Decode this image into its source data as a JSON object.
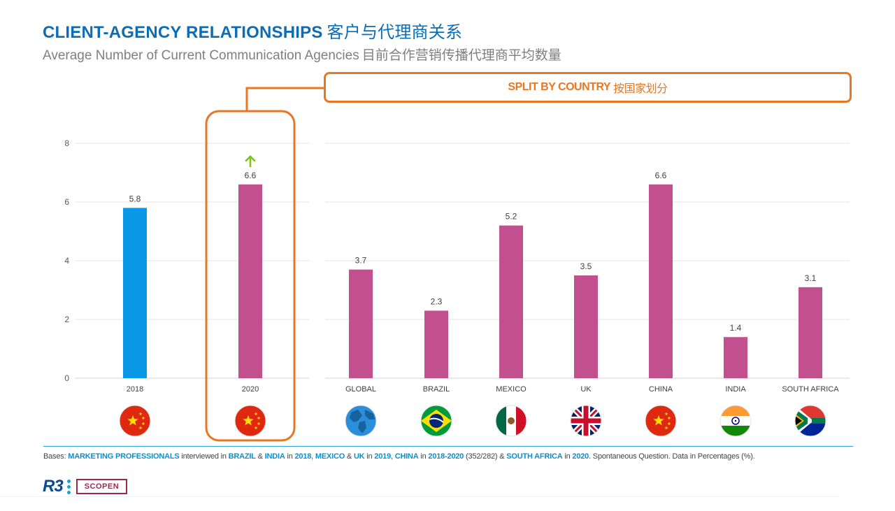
{
  "header": {
    "title": "CLIENT-AGENCY  RELATIONSHIPS",
    "title_cn": "客户与代理商关系",
    "subtitle": "Average Number of Current Communication Agencies",
    "subtitle_cn": "目前合作营销传播代理商平均数量"
  },
  "callout": {
    "label": "SPLIT BY COUNTRY",
    "label_cn": "按国家划分"
  },
  "chart_data": {
    "type": "bar",
    "ylim": [
      0,
      8
    ],
    "yticks": [
      0,
      2,
      4,
      6,
      8
    ],
    "grid": true,
    "panels": [
      {
        "name": "",
        "categories": [
          "2018",
          "2020"
        ],
        "values": [
          5.8,
          6.6
        ],
        "value_labels": [
          "5.8",
          "6.6"
        ],
        "colors": [
          "#0a98e6",
          "#c2508e"
        ],
        "flags": [
          "china",
          "china"
        ],
        "highlight_index": 1,
        "increase_arrow_index": 1
      },
      {
        "name": "",
        "categories": [
          "GLOBAL",
          "BRAZIL",
          "MEXICO",
          "UK",
          "CHINA",
          "INDIA",
          "SOUTH AFRICA"
        ],
        "values": [
          3.7,
          2.3,
          5.2,
          3.5,
          6.6,
          1.4,
          3.1
        ],
        "value_labels": [
          "3.7",
          "2.3",
          "5.2",
          "3.5",
          "6.6",
          "1.4",
          "3.1"
        ],
        "colors": [
          "#c2508e",
          "#c2508e",
          "#c2508e",
          "#c2508e",
          "#c2508e",
          "#c2508e",
          "#c2508e"
        ],
        "flags": [
          "globe",
          "brazil",
          "mexico",
          "uk",
          "china",
          "india",
          "south-africa"
        ]
      }
    ]
  },
  "footer": {
    "bases_prefix": "Bases: ",
    "p1": "MARKETING PROFESSIONALS",
    "t1": " interviewed in ",
    "p2": "BRAZIL",
    "t2": " & ",
    "p3": "INDIA",
    "t3": " in ",
    "p4": "2018",
    "t4": ", ",
    "p5": "MEXICO",
    "t5": " & ",
    "p6": "UK",
    "t6": " in ",
    "p7": "2019",
    "t7": ", ",
    "p8": "CHINA",
    "t8": " in ",
    "p9": "2018-2020",
    "t9": " (352/282) & ",
    "p10": "SOUTH AFRICA",
    "t10": " in ",
    "p11": "2020",
    "t11": ". Spontaneous Question. Data in Percentages (%).",
    "logo_r3": "R3",
    "logo_scopen": "SCOPEN"
  },
  "colors": {
    "accent_blue": "#0b6db7",
    "callout_orange": "#e87722",
    "bar_blue": "#0a98e6",
    "bar_magenta": "#c2508e",
    "arrow_green": "#7cc417"
  }
}
